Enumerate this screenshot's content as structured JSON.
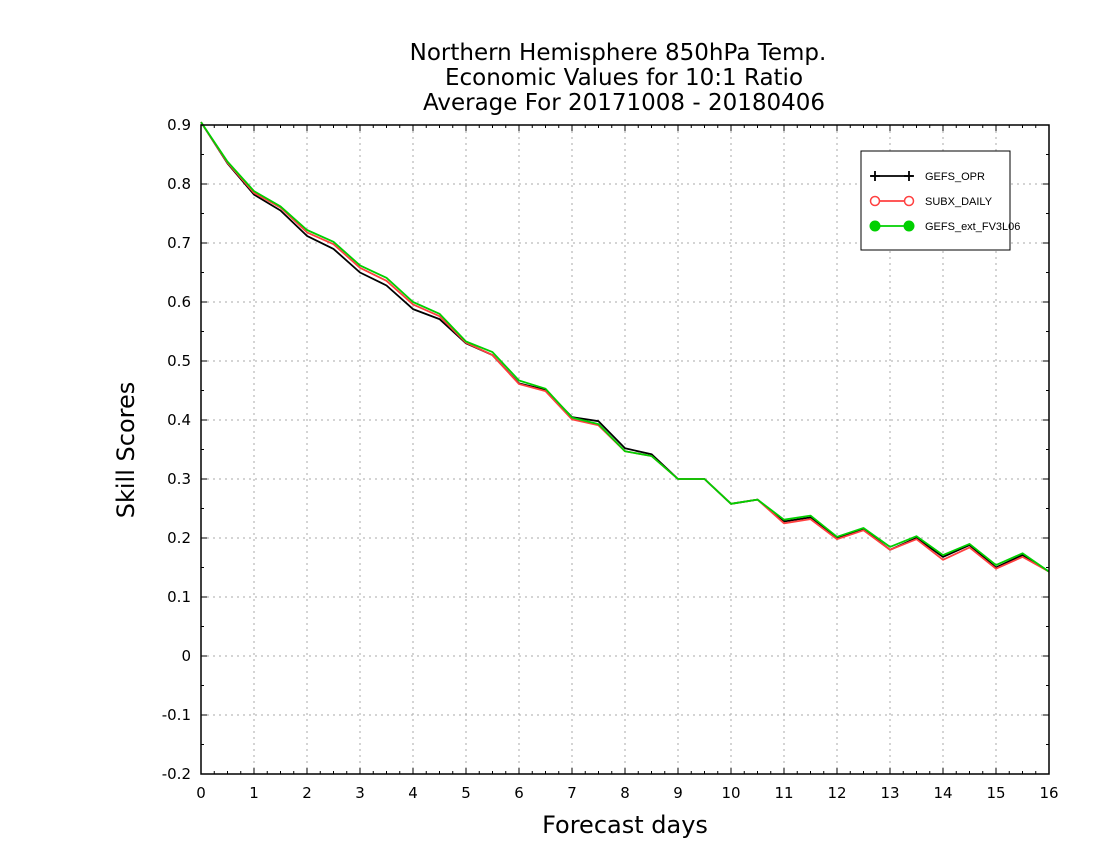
{
  "chart_data": {
    "type": "line",
    "title": [
      "Northern Hemisphere 850hPa Temp.",
      "Economic Values for 10:1 Ratio",
      "Average For 20171008 - 20180406"
    ],
    "xlabel": "Forecast days",
    "ylabel": "Skill Scores",
    "xlim": [
      0,
      16
    ],
    "ylim": [
      -0.2,
      0.9
    ],
    "xticks": [
      0,
      1,
      2,
      3,
      4,
      5,
      6,
      7,
      8,
      9,
      10,
      11,
      12,
      13,
      14,
      15,
      16
    ],
    "yticks": [
      0.9,
      0.8,
      0.7,
      0.6,
      0.5,
      0.4,
      0.3,
      0.2,
      0.1,
      0,
      -0.1,
      -0.2
    ],
    "grid": true,
    "legend_position": "top-right",
    "x": [
      0,
      0.5,
      1,
      1.5,
      2,
      2.5,
      3,
      3.5,
      4,
      4.5,
      5,
      5.5,
      6,
      6.5,
      7,
      7.5,
      8,
      8.5,
      9,
      9.5,
      10,
      10.5,
      11,
      11.5,
      12,
      12.5,
      13,
      13.5,
      14,
      14.5,
      15,
      15.5,
      16
    ],
    "series": [
      {
        "name": "GEFS_OPR",
        "color": "#000000",
        "marker": "plus",
        "values": [
          0.905,
          0.835,
          0.782,
          0.755,
          0.712,
          0.69,
          0.65,
          0.628,
          0.588,
          0.571,
          0.53,
          0.51,
          0.462,
          0.451,
          0.405,
          0.398,
          0.352,
          0.342,
          0.3,
          0.3,
          0.258,
          0.265,
          0.228,
          0.235,
          0.2,
          0.215,
          0.18,
          0.2,
          0.168,
          0.188,
          0.15,
          0.171,
          0.143
        ]
      },
      {
        "name": "SUBX_DAILY",
        "color": "#ff4040",
        "marker": "open-circle",
        "values": [
          0.905,
          0.836,
          0.785,
          0.76,
          0.718,
          0.698,
          0.658,
          0.636,
          0.596,
          0.576,
          0.531,
          0.51,
          0.461,
          0.449,
          0.401,
          0.391,
          0.347,
          0.339,
          0.3,
          0.3,
          0.258,
          0.265,
          0.225,
          0.232,
          0.198,
          0.213,
          0.18,
          0.198,
          0.163,
          0.184,
          0.148,
          0.168,
          0.143
        ]
      },
      {
        "name": "GEFS_ext_FV3L06",
        "color": "#00d000",
        "marker": "filled-circle",
        "values": [
          0.905,
          0.838,
          0.788,
          0.762,
          0.722,
          0.702,
          0.662,
          0.641,
          0.6,
          0.58,
          0.533,
          0.515,
          0.467,
          0.453,
          0.404,
          0.393,
          0.347,
          0.339,
          0.3,
          0.3,
          0.258,
          0.265,
          0.231,
          0.238,
          0.202,
          0.217,
          0.185,
          0.203,
          0.171,
          0.19,
          0.154,
          0.174,
          0.143
        ]
      }
    ]
  }
}
